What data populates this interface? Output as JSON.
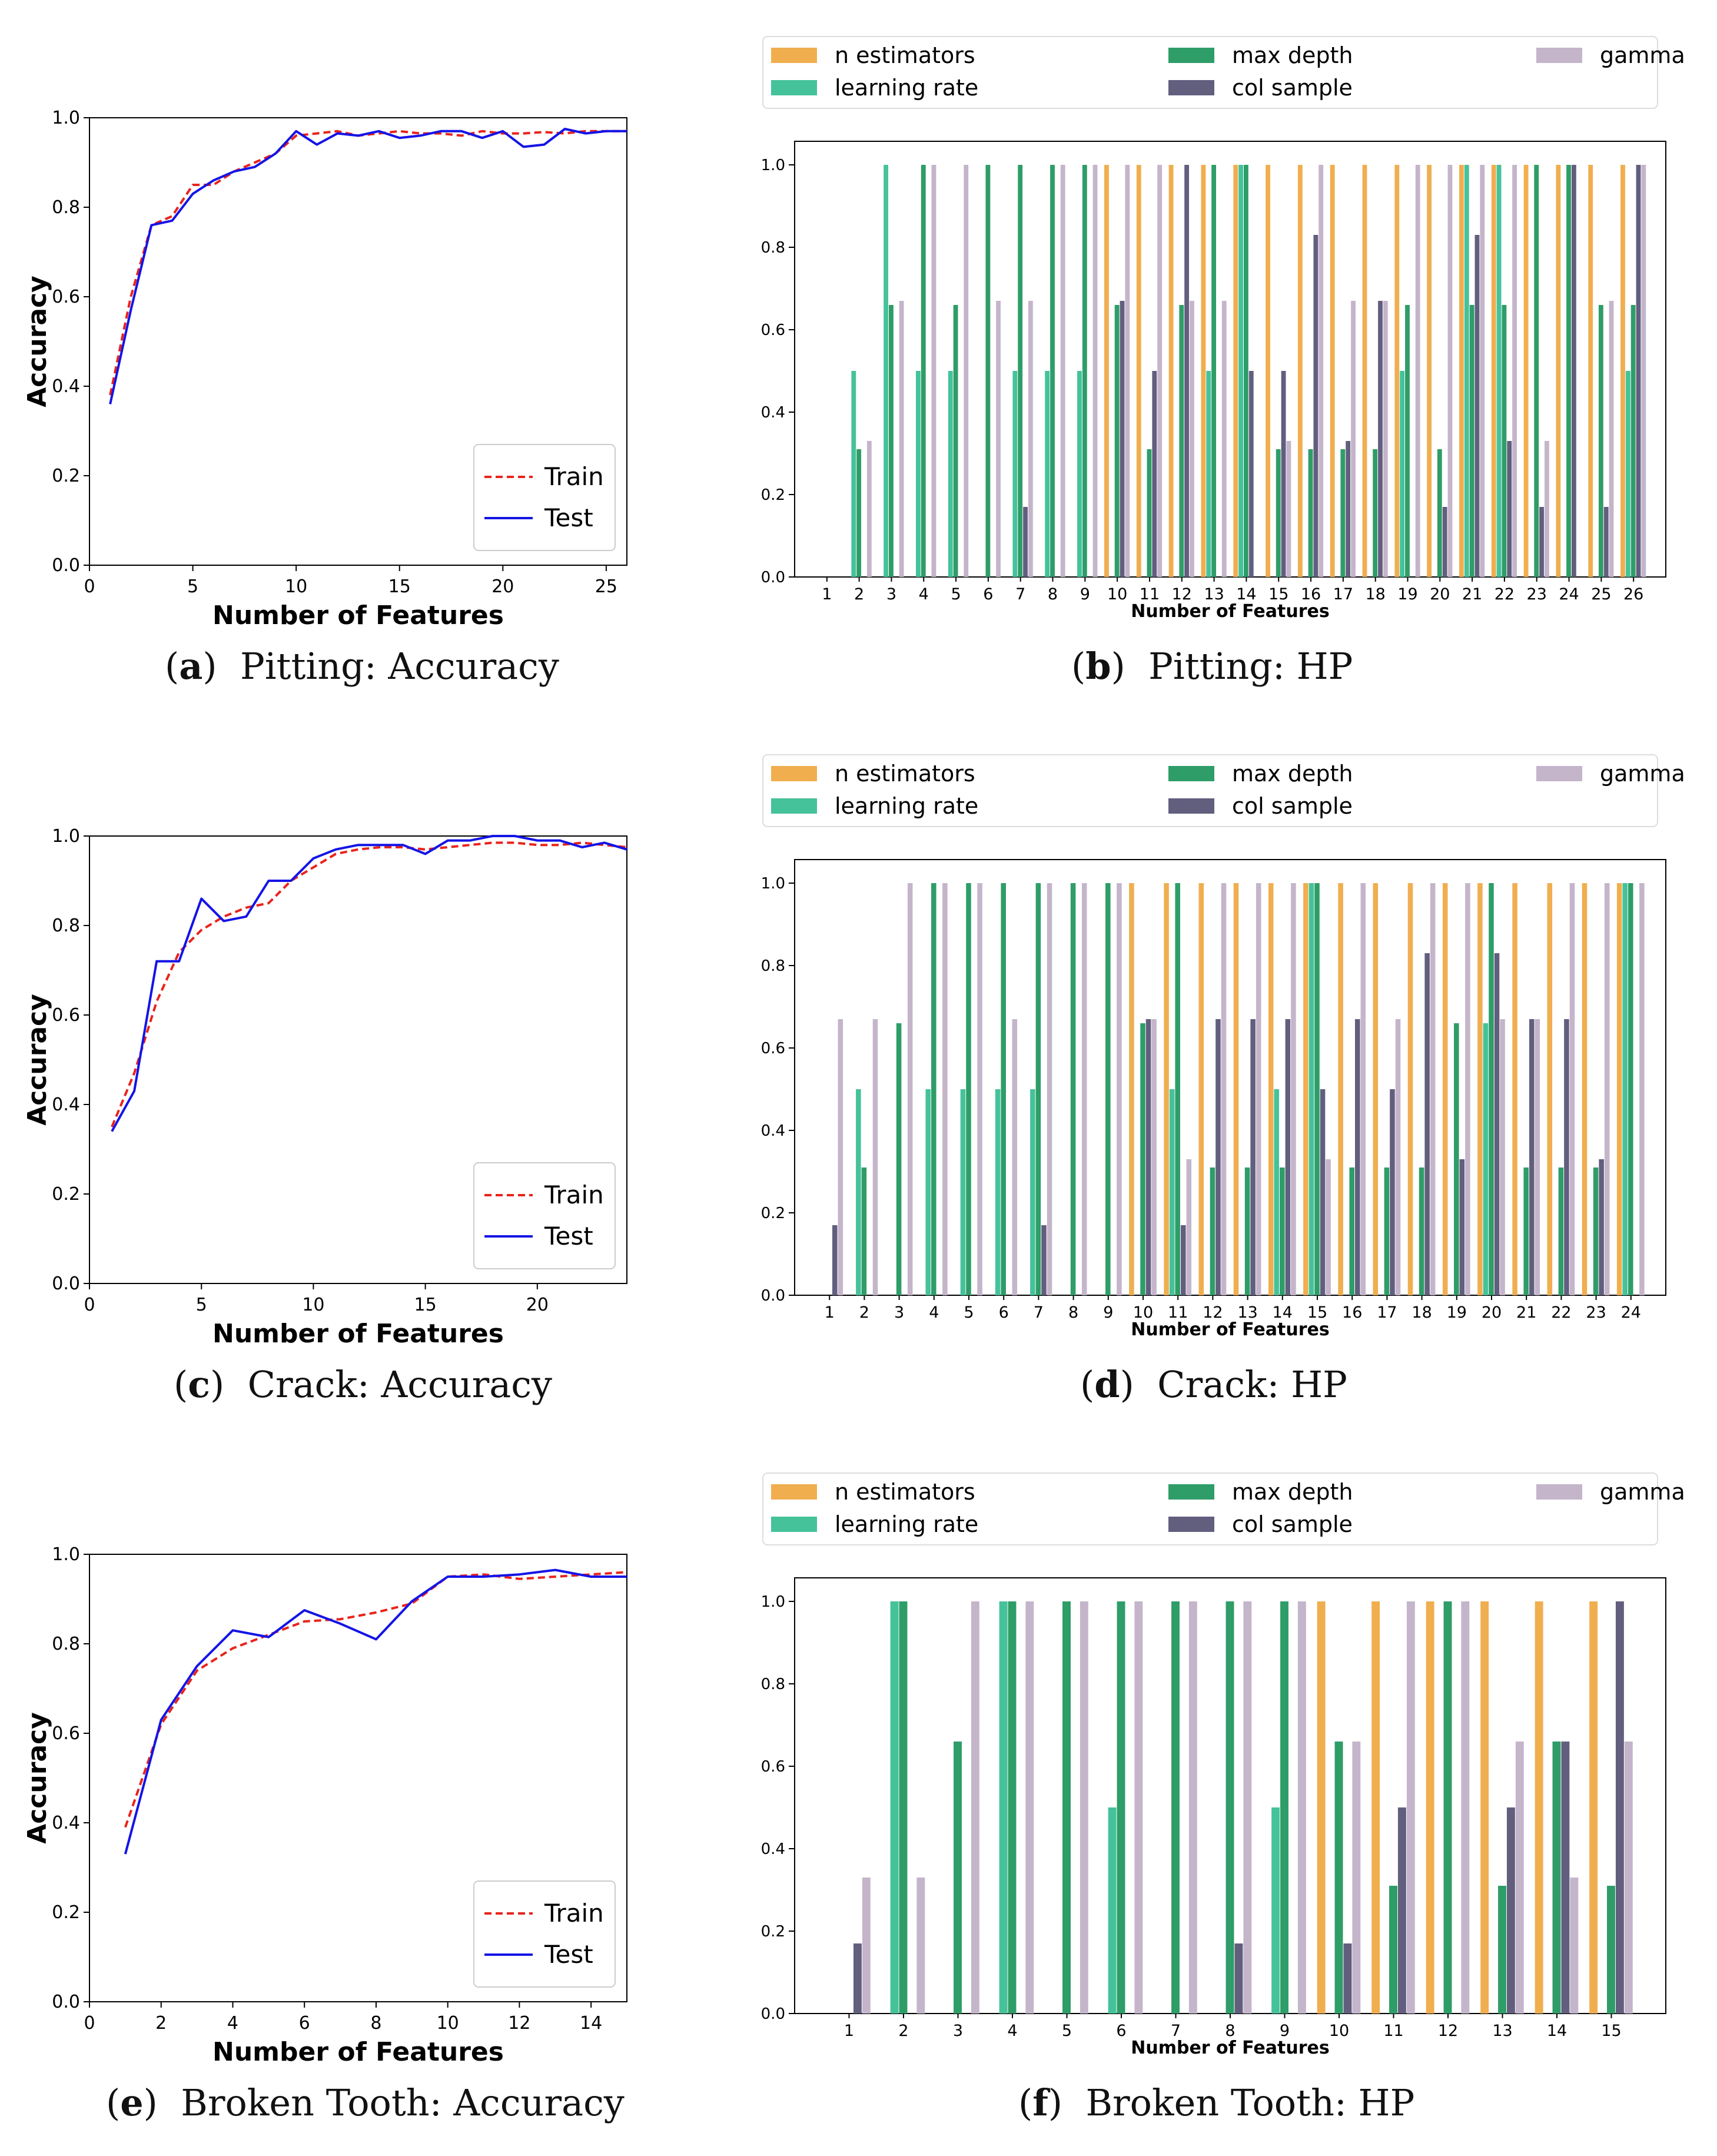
{
  "captions": {
    "a": {
      "label": "a",
      "text": "Pitting: Accuracy"
    },
    "b": {
      "label": "b",
      "text": "Pitting: HP"
    },
    "c": {
      "label": "c",
      "text": "Crack: Accuracy"
    },
    "d": {
      "label": "d",
      "text": "Crack: HP"
    },
    "e": {
      "label": "e",
      "text": "Broken Tooth: Accuracy"
    },
    "f": {
      "label": "f",
      "text": "Broken Tooth: HP"
    }
  },
  "colors": {
    "n_estimators": "#f0ae4f",
    "learning_rate": "#45c29a",
    "max_depth": "#2e9d68",
    "col_sample": "#625e7e",
    "gamma": "#c4b5cb",
    "train": "#e8231c",
    "test": "#1414e6"
  },
  "chart_data": [
    {
      "id": "a",
      "type": "line",
      "title": "Pitting: Accuracy",
      "xlabel": "Number of Features",
      "ylabel": "Accuracy",
      "xlim": [
        0,
        26
      ],
      "ylim": [
        0,
        1
      ],
      "xticks": [
        0,
        5,
        10,
        15,
        20,
        25
      ],
      "yticks": [
        "0.0",
        "0.2",
        "0.4",
        "0.6",
        "0.8",
        "1.0"
      ],
      "legend": {
        "position": "lower-right",
        "entries": [
          "Train",
          "Test"
        ]
      },
      "series": [
        {
          "name": "Train",
          "style": "dashed",
          "x": [
            1,
            2,
            3,
            4,
            5,
            6,
            7,
            8,
            9,
            10,
            11,
            12,
            13,
            14,
            15,
            16,
            17,
            18,
            19,
            20,
            21,
            22,
            23,
            24,
            25,
            26
          ],
          "values": [
            0.38,
            0.6,
            0.76,
            0.78,
            0.85,
            0.85,
            0.88,
            0.9,
            0.92,
            0.96,
            0.965,
            0.97,
            0.96,
            0.965,
            0.97,
            0.965,
            0.965,
            0.96,
            0.97,
            0.965,
            0.965,
            0.968,
            0.965,
            0.97,
            0.97,
            0.97
          ]
        },
        {
          "name": "Test",
          "style": "solid",
          "x": [
            1,
            2,
            3,
            4,
            5,
            6,
            7,
            8,
            9,
            10,
            11,
            12,
            13,
            14,
            15,
            16,
            17,
            18,
            19,
            20,
            21,
            22,
            23,
            24,
            25,
            26
          ],
          "values": [
            0.36,
            0.57,
            0.76,
            0.77,
            0.83,
            0.86,
            0.88,
            0.89,
            0.92,
            0.97,
            0.94,
            0.965,
            0.96,
            0.97,
            0.955,
            0.96,
            0.97,
            0.97,
            0.955,
            0.97,
            0.935,
            0.94,
            0.975,
            0.965,
            0.97,
            0.97
          ]
        }
      ]
    },
    {
      "id": "b",
      "type": "bar",
      "title": "Pitting: HP",
      "xlabel": "Number of Features",
      "ylim": [
        0,
        1
      ],
      "yticks": [
        "0.0",
        "0.2",
        "0.4",
        "0.6",
        "0.8",
        "1.0"
      ],
      "legend": {
        "position": "top",
        "entries": [
          "n estimators",
          "learning rate",
          "max depth",
          "col sample",
          "gamma"
        ]
      },
      "categories": [
        "1",
        "2",
        "3",
        "4",
        "5",
        "6",
        "7",
        "8",
        "9",
        "10",
        "11",
        "12",
        "13",
        "14",
        "15",
        "16",
        "17",
        "18",
        "19",
        "20",
        "21",
        "22",
        "23",
        "24",
        "25",
        "26"
      ],
      "series": [
        {
          "name": "n estimators",
          "values": [
            0,
            0,
            0,
            0,
            0,
            0,
            0,
            0,
            0,
            1,
            1,
            1,
            1,
            1,
            1,
            1,
            1,
            1,
            1,
            1,
            1,
            1,
            1,
            1,
            1,
            1
          ]
        },
        {
          "name": "learning rate",
          "values": [
            0,
            0.5,
            1,
            0.5,
            0.5,
            0,
            0.5,
            0.5,
            0.5,
            0,
            0,
            0,
            0.5,
            1,
            0,
            0,
            0,
            0,
            0.5,
            0,
            1,
            1,
            0,
            0,
            0,
            0.5
          ]
        },
        {
          "name": "max depth",
          "values": [
            0,
            0.31,
            0.66,
            1,
            0.66,
            1,
            1,
            1,
            1,
            0.66,
            0.31,
            0.66,
            1,
            1,
            0.31,
            0.31,
            0.31,
            0.31,
            0.66,
            0.31,
            0.66,
            0.66,
            1,
            1,
            0.66,
            0.66
          ]
        },
        {
          "name": "col sample",
          "values": [
            0,
            0,
            0,
            0,
            0,
            0,
            0.17,
            0,
            0,
            0.67,
            0.5,
            1,
            0,
            0.5,
            0.5,
            0.83,
            0.33,
            0.67,
            0,
            0.17,
            0.83,
            0.33,
            0.17,
            1,
            0.17,
            1
          ]
        },
        {
          "name": "gamma",
          "values": [
            0,
            0.33,
            0.67,
            1,
            1,
            0.67,
            0.67,
            1,
            1,
            1,
            1,
            0.67,
            0.67,
            0,
            0.33,
            1,
            0.67,
            0.67,
            1,
            1,
            1,
            1,
            0.33,
            0,
            0.67,
            1
          ]
        }
      ]
    },
    {
      "id": "c",
      "type": "line",
      "title": "Crack: Accuracy",
      "xlabel": "Number of Features",
      "ylabel": "Accuracy",
      "xlim": [
        0,
        24
      ],
      "ylim": [
        0,
        1
      ],
      "xticks": [
        0,
        5,
        10,
        15,
        20
      ],
      "yticks": [
        "0.0",
        "0.2",
        "0.4",
        "0.6",
        "0.8",
        "1.0"
      ],
      "legend": {
        "position": "lower-right",
        "entries": [
          "Train",
          "Test"
        ]
      },
      "series": [
        {
          "name": "Train",
          "style": "dashed",
          "x": [
            1,
            2,
            3,
            4,
            5,
            6,
            7,
            8,
            9,
            10,
            11,
            12,
            13,
            14,
            15,
            16,
            17,
            18,
            19,
            20,
            21,
            22,
            23,
            24
          ],
          "values": [
            0.35,
            0.47,
            0.63,
            0.74,
            0.79,
            0.82,
            0.84,
            0.85,
            0.9,
            0.93,
            0.96,
            0.97,
            0.975,
            0.975,
            0.97,
            0.975,
            0.98,
            0.985,
            0.985,
            0.98,
            0.98,
            0.985,
            0.98,
            0.975
          ]
        },
        {
          "name": "Test",
          "style": "solid",
          "x": [
            1,
            2,
            3,
            4,
            5,
            6,
            7,
            8,
            9,
            10,
            11,
            12,
            13,
            14,
            15,
            16,
            17,
            18,
            19,
            20,
            21,
            22,
            23,
            24
          ],
          "values": [
            0.34,
            0.43,
            0.72,
            0.72,
            0.86,
            0.81,
            0.82,
            0.9,
            0.9,
            0.95,
            0.97,
            0.98,
            0.98,
            0.98,
            0.96,
            0.99,
            0.99,
            1.0,
            1.0,
            0.99,
            0.99,
            0.975,
            0.985,
            0.97
          ]
        }
      ]
    },
    {
      "id": "d",
      "type": "bar",
      "title": "Crack: HP",
      "xlabel": "Number of Features",
      "ylim": [
        0,
        1
      ],
      "yticks": [
        "0.0",
        "0.2",
        "0.4",
        "0.6",
        "0.8",
        "1.0"
      ],
      "legend": {
        "position": "top",
        "entries": [
          "n estimators",
          "learning rate",
          "max depth",
          "col sample",
          "gamma"
        ]
      },
      "categories": [
        "1",
        "2",
        "3",
        "4",
        "5",
        "6",
        "7",
        "8",
        "9",
        "10",
        "11",
        "12",
        "13",
        "14",
        "15",
        "16",
        "17",
        "18",
        "19",
        "20",
        "21",
        "22",
        "23",
        "24"
      ],
      "series": [
        {
          "name": "n estimators",
          "values": [
            0,
            0,
            0,
            0,
            0,
            0,
            0,
            0,
            0,
            1,
            1,
            1,
            1,
            1,
            1,
            1,
            1,
            1,
            1,
            1,
            1,
            1,
            1,
            1
          ]
        },
        {
          "name": "learning rate",
          "values": [
            0,
            0.5,
            0,
            0.5,
            0.5,
            0.5,
            0.5,
            0,
            0,
            0,
            0.5,
            0,
            0,
            0.5,
            1,
            0,
            0,
            0,
            0,
            0.66,
            0,
            0,
            0,
            1
          ]
        },
        {
          "name": "max depth",
          "values": [
            0,
            0.31,
            0.66,
            1,
            1,
            1,
            1,
            1,
            1,
            0.66,
            1,
            0.31,
            0.31,
            0.31,
            1,
            0.31,
            0.31,
            0.31,
            0.66,
            1,
            0.31,
            0.31,
            0.31,
            1
          ]
        },
        {
          "name": "col sample",
          "values": [
            0.17,
            0,
            0,
            0,
            0,
            0,
            0.17,
            0,
            0,
            0.67,
            0.17,
            0.67,
            0.67,
            0.67,
            0.5,
            0.67,
            0.5,
            0.83,
            0.33,
            0.83,
            0.67,
            0.67,
            0.33,
            0
          ]
        },
        {
          "name": "gamma",
          "values": [
            0.67,
            0.67,
            1,
            1,
            1,
            0.67,
            1,
            1,
            1,
            0.67,
            0.33,
            1,
            1,
            1,
            0.33,
            1,
            0.67,
            1,
            1,
            0.67,
            0.67,
            1,
            1,
            1
          ]
        }
      ]
    },
    {
      "id": "e",
      "type": "line",
      "title": "Broken Tooth: Accuracy",
      "xlabel": "Number of Features",
      "ylabel": "Accuracy",
      "xlim": [
        0,
        15
      ],
      "ylim": [
        0,
        1
      ],
      "xticks": [
        0,
        2,
        4,
        6,
        8,
        10,
        12,
        14
      ],
      "yticks": [
        "0.0",
        "0.2",
        "0.4",
        "0.6",
        "0.8",
        "1.0"
      ],
      "legend": {
        "position": "lower-right",
        "entries": [
          "Train",
          "Test"
        ]
      },
      "series": [
        {
          "name": "Train",
          "style": "dashed",
          "x": [
            1,
            2,
            3,
            4,
            5,
            6,
            7,
            8,
            9,
            10,
            11,
            12,
            13,
            14,
            15
          ],
          "values": [
            0.39,
            0.62,
            0.74,
            0.79,
            0.82,
            0.85,
            0.855,
            0.87,
            0.89,
            0.95,
            0.955,
            0.945,
            0.95,
            0.955,
            0.96
          ]
        },
        {
          "name": "Test",
          "style": "solid",
          "x": [
            1,
            2,
            3,
            4,
            5,
            6,
            7,
            8,
            9,
            10,
            11,
            12,
            13,
            14,
            15
          ],
          "values": [
            0.33,
            0.63,
            0.75,
            0.83,
            0.815,
            0.875,
            0.845,
            0.81,
            0.895,
            0.95,
            0.95,
            0.955,
            0.965,
            0.95,
            0.95
          ]
        }
      ]
    },
    {
      "id": "f",
      "type": "bar",
      "title": "Broken Tooth: HP",
      "xlabel": "Number of Features",
      "ylim": [
        0,
        1
      ],
      "yticks": [
        "0.0",
        "0.2",
        "0.4",
        "0.6",
        "0.8",
        "1.0"
      ],
      "legend": {
        "position": "top",
        "entries": [
          "n estimators",
          "learning rate",
          "max depth",
          "col sample",
          "gamma"
        ]
      },
      "categories": [
        "1",
        "2",
        "3",
        "4",
        "5",
        "6",
        "7",
        "8",
        "9",
        "10",
        "11",
        "12",
        "13",
        "14",
        "15"
      ],
      "series": [
        {
          "name": "n estimators",
          "values": [
            0,
            0,
            0,
            0,
            0,
            0,
            0,
            0,
            0,
            1,
            1,
            1,
            1,
            1,
            1
          ]
        },
        {
          "name": "learning rate",
          "values": [
            0,
            1,
            0,
            1,
            0,
            0.5,
            0,
            0,
            0.5,
            0,
            0,
            0,
            0,
            0,
            0
          ]
        },
        {
          "name": "max depth",
          "values": [
            0,
            1,
            0.66,
            1,
            1,
            1,
            1,
            1,
            1,
            0.66,
            0.31,
            1,
            0.31,
            0.66,
            0.31
          ]
        },
        {
          "name": "col sample",
          "values": [
            0.17,
            0,
            0,
            0,
            0,
            0,
            0,
            0.17,
            0,
            0.17,
            0.5,
            0,
            0.5,
            0.66,
            1
          ]
        },
        {
          "name": "gamma",
          "values": [
            0.33,
            0.33,
            1,
            1,
            1,
            1,
            1,
            1,
            1,
            0.66,
            1,
            1,
            0.66,
            0.33,
            0.66
          ]
        }
      ]
    }
  ]
}
